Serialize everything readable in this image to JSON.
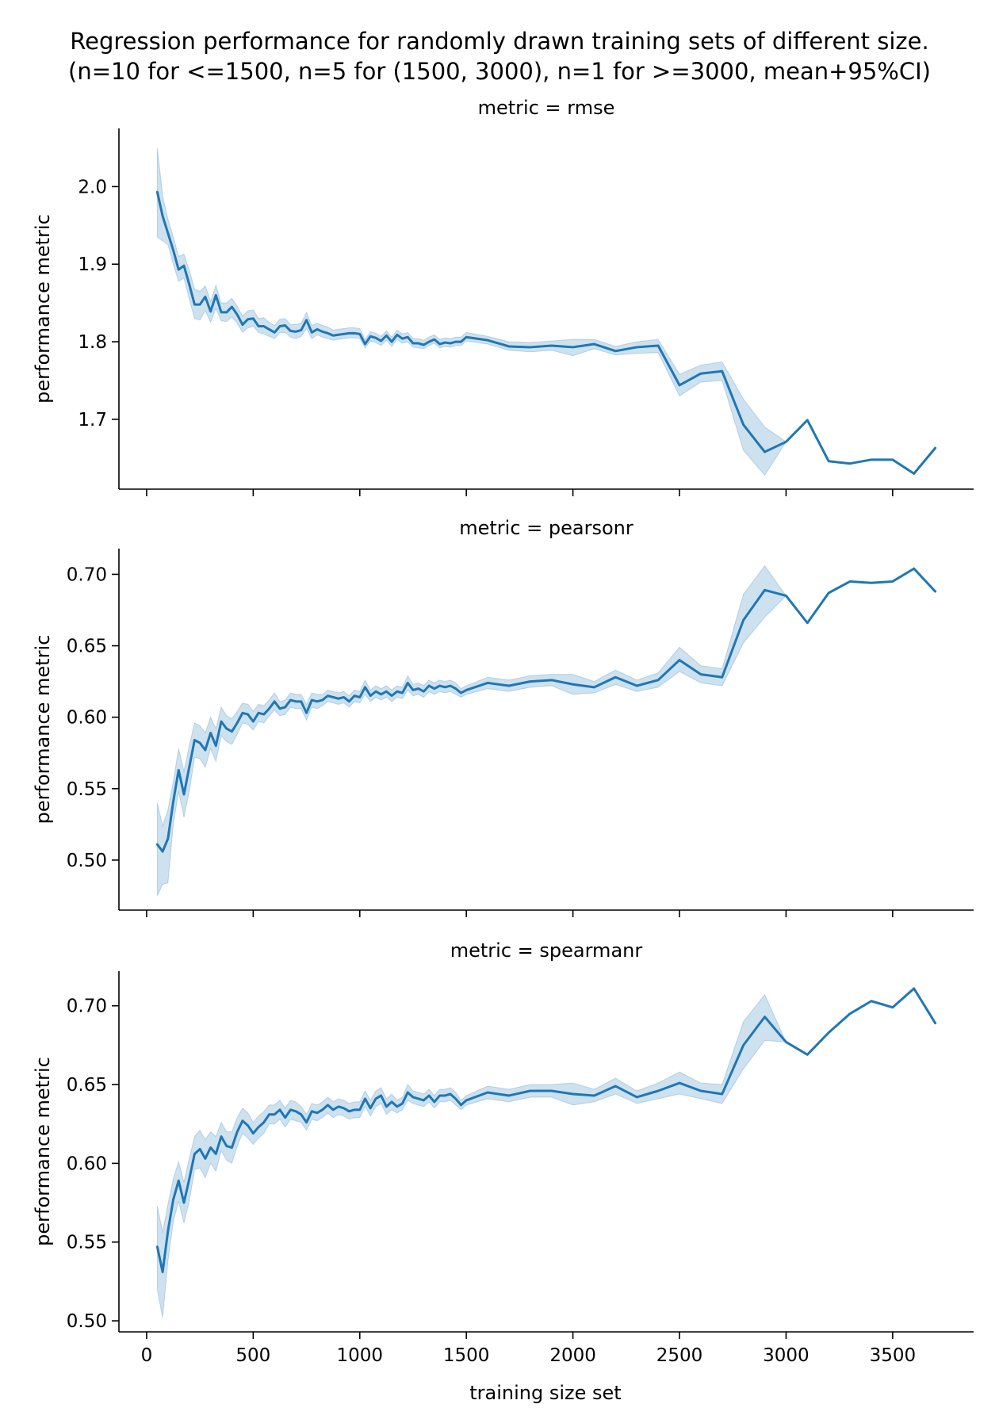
{
  "chart_data": {
    "type": "line",
    "title_lines": [
      "Regression performance for randomly drawn training sets of different size.",
      "(n=10 for <=1500, n=5 for (1500, 3000), n=1 for >=3000, mean+95%CI)"
    ],
    "xlabel": "training size set",
    "ylabel": "performance metric",
    "xlim": [
      -130,
      3880
    ],
    "x_ticks": [
      0,
      500,
      1000,
      1500,
      2000,
      2500,
      3000,
      3500
    ],
    "line_color": "#1f77b4",
    "band_color": "#1f77b4",
    "band_opacity": 0.22,
    "facets": [
      {
        "title": "metric = rmse",
        "ylim": [
          1.61,
          2.075
        ],
        "y_ticks": [
          1.7,
          1.8,
          1.9,
          2.0
        ],
        "y_tick_labels": [
          "1.7",
          "1.8",
          "1.9",
          "2.0"
        ],
        "x": [
          50,
          75,
          100,
          125,
          150,
          175,
          200,
          225,
          250,
          275,
          300,
          325,
          350,
          375,
          400,
          425,
          450,
          475,
          500,
          525,
          550,
          575,
          600,
          625,
          650,
          675,
          700,
          725,
          750,
          775,
          800,
          825,
          850,
          875,
          900,
          925,
          950,
          975,
          1000,
          1025,
          1050,
          1075,
          1100,
          1125,
          1150,
          1175,
          1200,
          1225,
          1250,
          1275,
          1300,
          1325,
          1350,
          1375,
          1400,
          1425,
          1450,
          1475,
          1500,
          1600,
          1700,
          1800,
          1900,
          2000,
          2100,
          2200,
          2300,
          2400,
          2500,
          2600,
          2700,
          2800,
          2900,
          3000,
          3100,
          3200,
          3300,
          3400,
          3500,
          3600,
          3700
        ],
        "mean": [
          1.993,
          1.962,
          1.94,
          1.918,
          1.893,
          1.898,
          1.874,
          1.848,
          1.848,
          1.858,
          1.839,
          1.86,
          1.838,
          1.838,
          1.845,
          1.835,
          1.822,
          1.829,
          1.83,
          1.82,
          1.82,
          1.816,
          1.812,
          1.82,
          1.821,
          1.814,
          1.813,
          1.815,
          1.828,
          1.812,
          1.816,
          1.813,
          1.811,
          1.808,
          1.809,
          1.81,
          1.811,
          1.811,
          1.81,
          1.797,
          1.807,
          1.805,
          1.801,
          1.808,
          1.8,
          1.809,
          1.804,
          1.806,
          1.798,
          1.798,
          1.796,
          1.8,
          1.803,
          1.797,
          1.799,
          1.798,
          1.8,
          1.8,
          1.806,
          1.802,
          1.794,
          1.793,
          1.795,
          1.793,
          1.797,
          1.788,
          1.793,
          1.795,
          1.744,
          1.759,
          1.762,
          1.693,
          1.658,
          1.671,
          1.699,
          1.646,
          1.643,
          1.648,
          1.648,
          1.63,
          1.663
        ],
        "lower": [
          1.935,
          1.93,
          1.925,
          1.9,
          1.878,
          1.882,
          1.855,
          1.83,
          1.828,
          1.84,
          1.825,
          1.843,
          1.827,
          1.826,
          1.832,
          1.824,
          1.812,
          1.818,
          1.82,
          1.812,
          1.81,
          1.807,
          1.804,
          1.812,
          1.812,
          1.806,
          1.804,
          1.807,
          1.817,
          1.804,
          1.809,
          1.806,
          1.804,
          1.802,
          1.803,
          1.804,
          1.805,
          1.805,
          1.804,
          1.792,
          1.801,
          1.799,
          1.795,
          1.802,
          1.794,
          1.803,
          1.798,
          1.8,
          1.793,
          1.792,
          1.791,
          1.795,
          1.798,
          1.792,
          1.794,
          1.793,
          1.795,
          1.795,
          1.801,
          1.797,
          1.789,
          1.787,
          1.789,
          1.782,
          1.791,
          1.783,
          1.785,
          1.786,
          1.73,
          1.748,
          1.75,
          1.66,
          1.628,
          1.671,
          1.699,
          1.646,
          1.643,
          1.648,
          1.648,
          1.63,
          1.663
        ],
        "upper": [
          2.05,
          1.988,
          1.958,
          1.935,
          1.91,
          1.913,
          1.892,
          1.868,
          1.865,
          1.872,
          1.852,
          1.873,
          1.85,
          1.85,
          1.856,
          1.846,
          1.833,
          1.84,
          1.841,
          1.83,
          1.831,
          1.825,
          1.821,
          1.829,
          1.83,
          1.822,
          1.822,
          1.824,
          1.838,
          1.821,
          1.824,
          1.821,
          1.819,
          1.815,
          1.816,
          1.817,
          1.818,
          1.818,
          1.817,
          1.803,
          1.813,
          1.811,
          1.807,
          1.814,
          1.806,
          1.815,
          1.81,
          1.812,
          1.804,
          1.804,
          1.802,
          1.806,
          1.809,
          1.803,
          1.805,
          1.804,
          1.806,
          1.806,
          1.812,
          1.807,
          1.8,
          1.799,
          1.801,
          1.803,
          1.803,
          1.794,
          1.8,
          1.803,
          1.758,
          1.77,
          1.774,
          1.726,
          1.69,
          1.671,
          1.699,
          1.646,
          1.643,
          1.648,
          1.648,
          1.63,
          1.663
        ]
      },
      {
        "title": "metric = pearsonr",
        "ylim": [
          0.465,
          0.718
        ],
        "y_ticks": [
          0.5,
          0.55,
          0.6,
          0.65,
          0.7
        ],
        "y_tick_labels": [
          "0.50",
          "0.55",
          "0.60",
          "0.65",
          "0.70"
        ],
        "x": [
          50,
          75,
          100,
          125,
          150,
          175,
          200,
          225,
          250,
          275,
          300,
          325,
          350,
          375,
          400,
          425,
          450,
          475,
          500,
          525,
          550,
          575,
          600,
          625,
          650,
          675,
          700,
          725,
          750,
          775,
          800,
          825,
          850,
          875,
          900,
          925,
          950,
          975,
          1000,
          1025,
          1050,
          1075,
          1100,
          1125,
          1150,
          1175,
          1200,
          1225,
          1250,
          1275,
          1300,
          1325,
          1350,
          1375,
          1400,
          1425,
          1450,
          1475,
          1500,
          1600,
          1700,
          1800,
          1900,
          2000,
          2100,
          2200,
          2300,
          2400,
          2500,
          2600,
          2700,
          2800,
          2900,
          3000,
          3100,
          3200,
          3300,
          3400,
          3500,
          3600,
          3700
        ],
        "mean": [
          0.511,
          0.506,
          0.515,
          0.541,
          0.563,
          0.546,
          0.565,
          0.584,
          0.582,
          0.577,
          0.589,
          0.58,
          0.597,
          0.592,
          0.59,
          0.596,
          0.603,
          0.602,
          0.597,
          0.603,
          0.602,
          0.606,
          0.611,
          0.606,
          0.607,
          0.612,
          0.611,
          0.611,
          0.603,
          0.612,
          0.611,
          0.612,
          0.615,
          0.614,
          0.613,
          0.614,
          0.611,
          0.615,
          0.614,
          0.621,
          0.615,
          0.618,
          0.616,
          0.618,
          0.615,
          0.618,
          0.617,
          0.624,
          0.619,
          0.62,
          0.618,
          0.622,
          0.62,
          0.622,
          0.621,
          0.622,
          0.62,
          0.617,
          0.619,
          0.624,
          0.622,
          0.625,
          0.626,
          0.623,
          0.621,
          0.628,
          0.622,
          0.626,
          0.64,
          0.63,
          0.628,
          0.668,
          0.689,
          0.685,
          0.666,
          0.687,
          0.695,
          0.694,
          0.695,
          0.704,
          0.688
        ],
        "lower": [
          0.475,
          0.483,
          0.484,
          0.525,
          0.548,
          0.53,
          0.548,
          0.572,
          0.571,
          0.565,
          0.578,
          0.569,
          0.587,
          0.583,
          0.581,
          0.588,
          0.596,
          0.595,
          0.591,
          0.597,
          0.596,
          0.601,
          0.605,
          0.601,
          0.602,
          0.607,
          0.606,
          0.606,
          0.598,
          0.607,
          0.606,
          0.608,
          0.611,
          0.61,
          0.609,
          0.61,
          0.607,
          0.611,
          0.61,
          0.616,
          0.611,
          0.614,
          0.612,
          0.614,
          0.611,
          0.614,
          0.613,
          0.619,
          0.615,
          0.616,
          0.614,
          0.618,
          0.616,
          0.618,
          0.617,
          0.618,
          0.616,
          0.614,
          0.616,
          0.62,
          0.618,
          0.621,
          0.622,
          0.616,
          0.617,
          0.623,
          0.618,
          0.621,
          0.632,
          0.624,
          0.622,
          0.652,
          0.67,
          0.685,
          0.666,
          0.687,
          0.695,
          0.694,
          0.695,
          0.704,
          0.688
        ],
        "upper": [
          0.54,
          0.524,
          0.535,
          0.555,
          0.578,
          0.562,
          0.58,
          0.596,
          0.594,
          0.589,
          0.6,
          0.592,
          0.607,
          0.601,
          0.599,
          0.604,
          0.61,
          0.609,
          0.604,
          0.609,
          0.608,
          0.612,
          0.617,
          0.611,
          0.612,
          0.617,
          0.616,
          0.616,
          0.609,
          0.617,
          0.616,
          0.616,
          0.619,
          0.618,
          0.617,
          0.618,
          0.615,
          0.619,
          0.618,
          0.626,
          0.619,
          0.622,
          0.62,
          0.622,
          0.619,
          0.622,
          0.621,
          0.629,
          0.623,
          0.624,
          0.622,
          0.626,
          0.624,
          0.626,
          0.625,
          0.626,
          0.624,
          0.62,
          0.622,
          0.628,
          0.626,
          0.629,
          0.63,
          0.63,
          0.625,
          0.633,
          0.626,
          0.631,
          0.649,
          0.636,
          0.634,
          0.686,
          0.706,
          0.685,
          0.666,
          0.687,
          0.695,
          0.694,
          0.695,
          0.704,
          0.688
        ]
      },
      {
        "title": "metric = spearmanr",
        "ylim": [
          0.493,
          0.722
        ],
        "y_ticks": [
          0.5,
          0.55,
          0.6,
          0.65,
          0.7
        ],
        "y_tick_labels": [
          "0.50",
          "0.55",
          "0.60",
          "0.65",
          "0.70"
        ],
        "x": [
          50,
          75,
          100,
          125,
          150,
          175,
          200,
          225,
          250,
          275,
          300,
          325,
          350,
          375,
          400,
          425,
          450,
          475,
          500,
          525,
          550,
          575,
          600,
          625,
          650,
          675,
          700,
          725,
          750,
          775,
          800,
          825,
          850,
          875,
          900,
          925,
          950,
          975,
          1000,
          1025,
          1050,
          1075,
          1100,
          1125,
          1150,
          1175,
          1200,
          1225,
          1250,
          1275,
          1300,
          1325,
          1350,
          1375,
          1400,
          1425,
          1450,
          1475,
          1500,
          1600,
          1700,
          1800,
          1900,
          2000,
          2100,
          2200,
          2300,
          2400,
          2500,
          2600,
          2700,
          2800,
          2900,
          3000,
          3100,
          3200,
          3300,
          3400,
          3500,
          3600,
          3700
        ],
        "mean": [
          0.547,
          0.531,
          0.557,
          0.577,
          0.589,
          0.575,
          0.59,
          0.606,
          0.609,
          0.603,
          0.61,
          0.606,
          0.617,
          0.611,
          0.61,
          0.62,
          0.627,
          0.624,
          0.619,
          0.623,
          0.626,
          0.631,
          0.631,
          0.634,
          0.629,
          0.634,
          0.633,
          0.631,
          0.626,
          0.633,
          0.632,
          0.634,
          0.637,
          0.634,
          0.636,
          0.635,
          0.633,
          0.634,
          0.634,
          0.641,
          0.635,
          0.641,
          0.643,
          0.636,
          0.639,
          0.636,
          0.638,
          0.645,
          0.642,
          0.641,
          0.64,
          0.643,
          0.639,
          0.643,
          0.643,
          0.644,
          0.641,
          0.637,
          0.64,
          0.645,
          0.643,
          0.646,
          0.646,
          0.644,
          0.643,
          0.649,
          0.642,
          0.646,
          0.651,
          0.646,
          0.644,
          0.675,
          0.693,
          0.677,
          0.669,
          0.683,
          0.695,
          0.703,
          0.699,
          0.711,
          0.689
        ],
        "lower": [
          0.52,
          0.502,
          0.538,
          0.563,
          0.576,
          0.562,
          0.576,
          0.596,
          0.597,
          0.591,
          0.6,
          0.595,
          0.608,
          0.602,
          0.6,
          0.611,
          0.619,
          0.616,
          0.612,
          0.616,
          0.619,
          0.625,
          0.625,
          0.628,
          0.623,
          0.628,
          0.627,
          0.626,
          0.621,
          0.628,
          0.627,
          0.629,
          0.632,
          0.629,
          0.631,
          0.63,
          0.628,
          0.629,
          0.629,
          0.636,
          0.63,
          0.636,
          0.638,
          0.631,
          0.634,
          0.632,
          0.634,
          0.64,
          0.638,
          0.637,
          0.636,
          0.639,
          0.635,
          0.639,
          0.639,
          0.64,
          0.637,
          0.634,
          0.637,
          0.641,
          0.639,
          0.642,
          0.642,
          0.637,
          0.639,
          0.644,
          0.638,
          0.641,
          0.644,
          0.641,
          0.638,
          0.66,
          0.678,
          0.677,
          0.669,
          0.683,
          0.695,
          0.703,
          0.699,
          0.711,
          0.689
        ],
        "upper": [
          0.573,
          0.556,
          0.574,
          0.59,
          0.601,
          0.588,
          0.603,
          0.617,
          0.621,
          0.615,
          0.62,
          0.617,
          0.626,
          0.62,
          0.62,
          0.629,
          0.635,
          0.632,
          0.626,
          0.63,
          0.633,
          0.637,
          0.637,
          0.64,
          0.635,
          0.64,
          0.639,
          0.636,
          0.631,
          0.638,
          0.637,
          0.639,
          0.642,
          0.639,
          0.641,
          0.64,
          0.638,
          0.639,
          0.639,
          0.646,
          0.64,
          0.646,
          0.648,
          0.641,
          0.644,
          0.64,
          0.642,
          0.65,
          0.646,
          0.645,
          0.644,
          0.647,
          0.643,
          0.647,
          0.647,
          0.648,
          0.645,
          0.64,
          0.643,
          0.649,
          0.647,
          0.65,
          0.65,
          0.651,
          0.647,
          0.654,
          0.646,
          0.651,
          0.658,
          0.651,
          0.65,
          0.69,
          0.707,
          0.677,
          0.669,
          0.683,
          0.695,
          0.703,
          0.699,
          0.711,
          0.689
        ]
      }
    ]
  }
}
